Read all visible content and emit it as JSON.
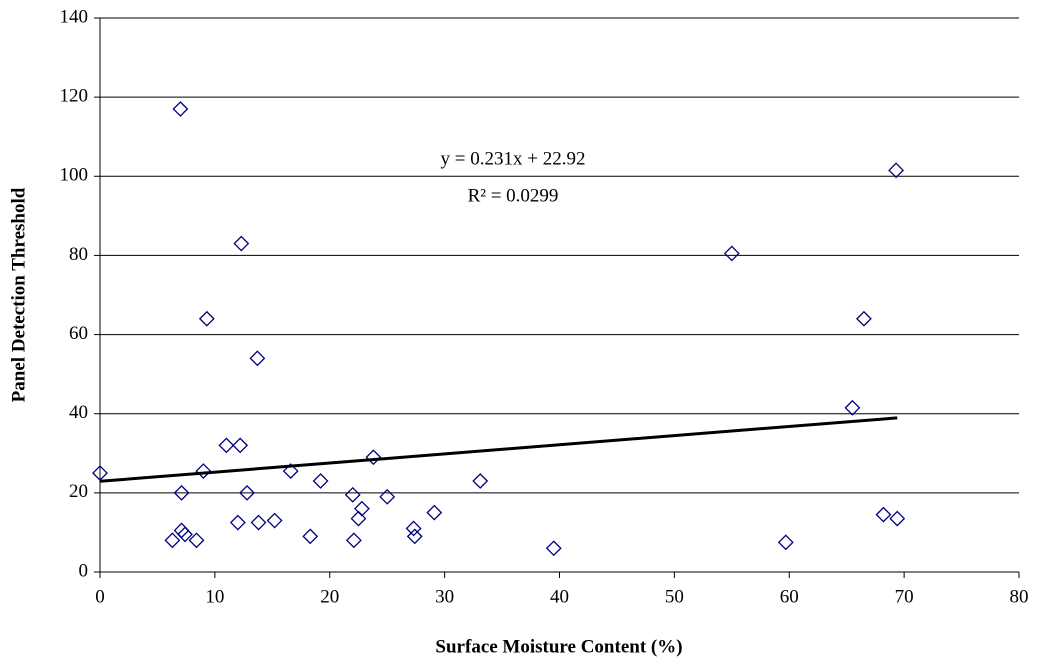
{
  "chart_data": {
    "type": "scatter",
    "xlabel": "Surface Moisture Content (%)",
    "ylabel": "Panel Detection Threshold",
    "x": [
      0,
      6.3,
      7,
      7.1,
      7.1,
      7.4,
      8.4,
      9,
      9.3,
      11,
      12,
      12.2,
      12.3,
      12.8,
      13.7,
      13.8,
      15.2,
      16.6,
      18.3,
      19.2,
      22,
      22.1,
      22.5,
      22.8,
      23.8,
      25,
      27.3,
      27.4,
      29.1,
      33.1,
      39.5,
      55,
      59.7,
      65.5,
      66.5,
      68.2,
      69.3,
      69.4
    ],
    "y": [
      25,
      8,
      117,
      20,
      10.5,
      9.5,
      8,
      25.5,
      64,
      32,
      12.5,
      32,
      83,
      20,
      54,
      12.5,
      13,
      25.5,
      9,
      23,
      19.5,
      8,
      13.5,
      16,
      29,
      19,
      11,
      9,
      15,
      23,
      6,
      80.5,
      7.5,
      41.5,
      64,
      14.5,
      101.5,
      13.5
    ],
    "marker_color": "#000080",
    "trendline": {
      "x": [
        0,
        69.4
      ],
      "y": [
        22.92,
        38.95
      ],
      "color": "#000000"
    },
    "annotations": [
      "y = 0.231x + 22.92",
      "R² = 0.0299"
    ],
    "xlim": [
      0,
      80
    ],
    "xticks": [
      0,
      10,
      20,
      30,
      40,
      50,
      60,
      70,
      80
    ],
    "ylim": [
      0,
      140
    ],
    "yticks": [
      0,
      20,
      40,
      60,
      80,
      100,
      120,
      140
    ],
    "grid": true
  }
}
